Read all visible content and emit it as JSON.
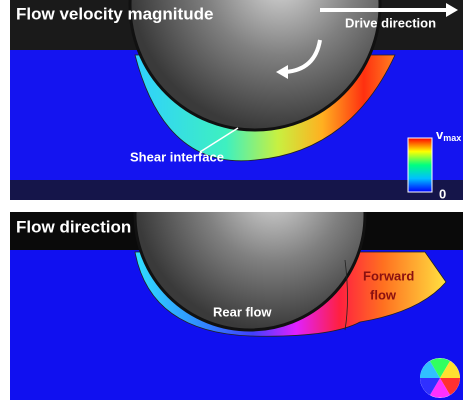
{
  "top_panel": {
    "title": "Flow velocity magnitude",
    "drive_direction": "Drive direction",
    "shear_interface": "Shear interface",
    "colorbar": {
      "max_symbol": "v",
      "max_subscript": "max",
      "min_label": "0"
    }
  },
  "bottom_panel": {
    "title": "Flow direction",
    "rear_flow": "Rear flow",
    "forward_flow": [
      "Forward",
      "flow"
    ]
  }
}
